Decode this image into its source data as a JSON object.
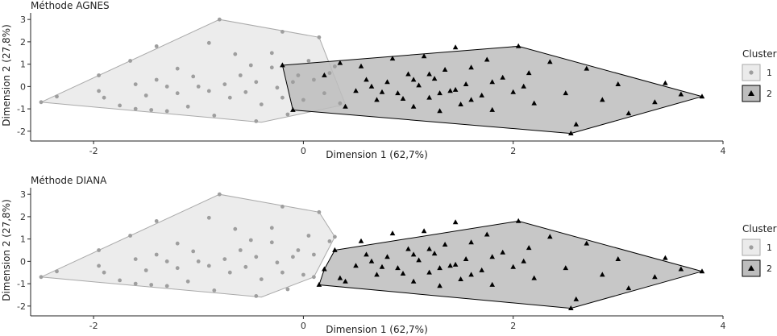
{
  "colors": {
    "cluster1_fill": "#ebebeb",
    "cluster1_stroke": "#aaaaaa",
    "cluster1_point": "#9e9e9e",
    "cluster2_fill": "#bdbdbd",
    "cluster2_stroke": "#000000",
    "cluster2_point": "#000000"
  },
  "legend": {
    "title": "Cluster",
    "placement": "right",
    "items": [
      {
        "label": "1",
        "marker": "circle"
      },
      {
        "label": "2",
        "marker": "triangle"
      }
    ]
  },
  "chart_data": [
    {
      "type": "scatter",
      "title": "Méthode AGNES",
      "xlabel": "Dimension 1 (62,7%)",
      "ylabel": "Dimension 2 (27,8%)",
      "xlim": [
        -2.6,
        4.0
      ],
      "ylim": [
        -2.15,
        3.15
      ],
      "xticks": [
        -2,
        0,
        2,
        4
      ],
      "yticks": [
        -2,
        -1,
        0,
        1,
        2,
        3
      ],
      "grid": false,
      "series": [
        {
          "name": "1",
          "marker": "circle",
          "hull": [
            [
              -2.5,
              -0.7
            ],
            [
              -0.8,
              3.0
            ],
            [
              0.15,
              2.2
            ],
            [
              0.4,
              -0.8
            ],
            [
              -0.4,
              -1.6
            ]
          ],
          "points": [
            [
              -2.5,
              -0.7
            ],
            [
              -2.35,
              -0.45
            ],
            [
              -1.95,
              0.5
            ],
            [
              -1.65,
              1.15
            ],
            [
              -1.4,
              1.8
            ],
            [
              -1.2,
              0.8
            ],
            [
              -1.05,
              0.45
            ],
            [
              -0.8,
              3.0
            ],
            [
              -0.9,
              1.95
            ],
            [
              -0.65,
              1.45
            ],
            [
              -0.5,
              0.95
            ],
            [
              -0.45,
              -1.55
            ],
            [
              -0.3,
              1.5
            ],
            [
              -0.2,
              2.45
            ],
            [
              -0.1,
              0.2
            ],
            [
              0.05,
              1.15
            ],
            [
              0.15,
              2.2
            ],
            [
              0.3,
              0.9
            ],
            [
              0.35,
              -0.75
            ],
            [
              -1.95,
              -0.2
            ],
            [
              -1.9,
              -0.5
            ],
            [
              -1.75,
              -0.85
            ],
            [
              -1.6,
              -1.0
            ],
            [
              -1.45,
              -1.05
            ],
            [
              -1.3,
              -1.1
            ],
            [
              -1.1,
              -0.9
            ],
            [
              -1.5,
              -0.4
            ],
            [
              -1.4,
              0.3
            ],
            [
              -1.3,
              0.0
            ],
            [
              -1.2,
              -0.3
            ],
            [
              -1.6,
              0.1
            ],
            [
              -1.0,
              0.0
            ],
            [
              -0.9,
              -0.2
            ],
            [
              -0.85,
              -1.3
            ],
            [
              -0.75,
              0.1
            ],
            [
              -0.7,
              -0.5
            ],
            [
              -0.6,
              0.5
            ],
            [
              -0.55,
              -0.25
            ],
            [
              -0.45,
              0.2
            ],
            [
              -0.4,
              -0.8
            ],
            [
              -0.3,
              0.85
            ],
            [
              -0.25,
              -0.05
            ],
            [
              -0.2,
              -0.5
            ],
            [
              -0.15,
              -1.25
            ],
            [
              -0.05,
              0.5
            ],
            [
              0.0,
              -0.6
            ],
            [
              0.1,
              0.3
            ],
            [
              0.2,
              -0.3
            ],
            [
              0.25,
              0.6
            ]
          ]
        },
        {
          "name": "2",
          "marker": "triangle",
          "hull": [
            [
              -0.2,
              0.95
            ],
            [
              2.05,
              1.8
            ],
            [
              3.8,
              -0.45
            ],
            [
              2.55,
              -2.1
            ],
            [
              -0.1,
              -1.05
            ]
          ],
          "points": [
            [
              -0.2,
              0.95
            ],
            [
              -0.1,
              -1.05
            ],
            [
              0.2,
              0.5
            ],
            [
              0.35,
              1.05
            ],
            [
              0.5,
              -0.2
            ],
            [
              0.6,
              0.3
            ],
            [
              0.7,
              -0.6
            ],
            [
              0.8,
              0.2
            ],
            [
              0.85,
              1.25
            ],
            [
              0.9,
              -0.3
            ],
            [
              1.0,
              0.55
            ],
            [
              1.05,
              -0.9
            ],
            [
              1.1,
              0.05
            ],
            [
              1.15,
              1.35
            ],
            [
              1.2,
              -0.5
            ],
            [
              1.25,
              0.35
            ],
            [
              1.3,
              -1.1
            ],
            [
              1.35,
              0.75
            ],
            [
              1.4,
              -0.2
            ],
            [
              1.45,
              1.75
            ],
            [
              1.5,
              -0.8
            ],
            [
              1.55,
              0.1
            ],
            [
              1.6,
              0.85
            ],
            [
              1.7,
              -0.4
            ],
            [
              1.75,
              1.2
            ],
            [
              1.8,
              -1.05
            ],
            [
              1.9,
              0.4
            ],
            [
              2.0,
              -0.25
            ],
            [
              2.05,
              1.8
            ],
            [
              2.15,
              0.6
            ],
            [
              2.2,
              -0.75
            ],
            [
              2.35,
              1.1
            ],
            [
              2.5,
              -0.3
            ],
            [
              2.55,
              -2.1
            ],
            [
              2.6,
              -1.7
            ],
            [
              2.7,
              0.8
            ],
            [
              2.85,
              -0.6
            ],
            [
              3.0,
              0.1
            ],
            [
              3.1,
              -1.2
            ],
            [
              3.35,
              -0.7
            ],
            [
              3.45,
              0.15
            ],
            [
              3.6,
              -0.35
            ],
            [
              3.8,
              -0.45
            ],
            [
              0.4,
              -0.9
            ],
            [
              0.55,
              0.9
            ],
            [
              0.65,
              0.0
            ],
            [
              0.75,
              -0.25
            ],
            [
              0.95,
              -0.55
            ],
            [
              1.05,
              0.3
            ],
            [
              1.2,
              0.55
            ],
            [
              1.3,
              -0.3
            ],
            [
              1.45,
              -0.15
            ],
            [
              1.6,
              -0.6
            ],
            [
              1.8,
              0.2
            ],
            [
              2.1,
              0.0
            ]
          ]
        }
      ]
    },
    {
      "type": "scatter",
      "title": "Méthode DIANA",
      "xlabel": "Dimension 1 (62,7%)",
      "ylabel": "Dimension 2 (27,8%)",
      "xlim": [
        -2.6,
        4.0
      ],
      "ylim": [
        -2.15,
        3.15
      ],
      "xticks": [
        -2,
        0,
        2,
        4
      ],
      "yticks": [
        -2,
        -1,
        0,
        1,
        2,
        3
      ],
      "grid": false,
      "series": [
        {
          "name": "1",
          "marker": "circle",
          "hull": [
            [
              -2.5,
              -0.7
            ],
            [
              -0.8,
              3.0
            ],
            [
              0.15,
              2.2
            ],
            [
              0.3,
              1.1
            ],
            [
              0.1,
              -0.7
            ],
            [
              -0.4,
              -1.6
            ]
          ],
          "points": [
            [
              -2.5,
              -0.7
            ],
            [
              -2.35,
              -0.45
            ],
            [
              -1.95,
              0.5
            ],
            [
              -1.65,
              1.15
            ],
            [
              -1.4,
              1.8
            ],
            [
              -1.2,
              0.8
            ],
            [
              -1.05,
              0.45
            ],
            [
              -0.8,
              3.0
            ],
            [
              -0.9,
              1.95
            ],
            [
              -0.65,
              1.45
            ],
            [
              -0.5,
              0.95
            ],
            [
              -0.45,
              -1.55
            ],
            [
              -0.3,
              1.5
            ],
            [
              -0.2,
              2.45
            ],
            [
              -0.1,
              0.2
            ],
            [
              0.05,
              1.15
            ],
            [
              0.15,
              2.2
            ],
            [
              0.3,
              1.1
            ],
            [
              0.25,
              0.9
            ],
            [
              0.1,
              -0.7
            ],
            [
              -1.95,
              -0.2
            ],
            [
              -1.9,
              -0.5
            ],
            [
              -1.75,
              -0.85
            ],
            [
              -1.6,
              -1.0
            ],
            [
              -1.45,
              -1.05
            ],
            [
              -1.3,
              -1.1
            ],
            [
              -1.1,
              -0.9
            ],
            [
              -1.5,
              -0.4
            ],
            [
              -1.4,
              0.3
            ],
            [
              -1.3,
              0.0
            ],
            [
              -1.2,
              -0.3
            ],
            [
              -1.6,
              0.1
            ],
            [
              -1.0,
              0.0
            ],
            [
              -0.9,
              -0.2
            ],
            [
              -0.85,
              -1.3
            ],
            [
              -0.75,
              0.1
            ],
            [
              -0.7,
              -0.5
            ],
            [
              -0.6,
              0.5
            ],
            [
              -0.55,
              -0.25
            ],
            [
              -0.45,
              0.2
            ],
            [
              -0.4,
              -0.8
            ],
            [
              -0.3,
              0.85
            ],
            [
              -0.25,
              -0.05
            ],
            [
              -0.2,
              -0.5
            ],
            [
              -0.15,
              -1.25
            ],
            [
              -0.05,
              0.5
            ],
            [
              0.0,
              -0.6
            ],
            [
              0.1,
              0.3
            ]
          ]
        },
        {
          "name": "2",
          "marker": "triangle",
          "hull": [
            [
              0.3,
              0.5
            ],
            [
              2.05,
              1.8
            ],
            [
              3.8,
              -0.45
            ],
            [
              2.55,
              -2.1
            ],
            [
              0.15,
              -1.05
            ],
            [
              0.2,
              -0.35
            ]
          ],
          "points": [
            [
              0.3,
              0.5
            ],
            [
              0.15,
              -1.05
            ],
            [
              0.2,
              -0.35
            ],
            [
              0.35,
              -0.75
            ],
            [
              0.5,
              -0.2
            ],
            [
              0.6,
              0.3
            ],
            [
              0.7,
              -0.6
            ],
            [
              0.8,
              0.2
            ],
            [
              0.85,
              1.25
            ],
            [
              0.9,
              -0.3
            ],
            [
              1.0,
              0.55
            ],
            [
              1.05,
              -0.9
            ],
            [
              1.1,
              0.05
            ],
            [
              1.15,
              1.35
            ],
            [
              1.2,
              -0.5
            ],
            [
              1.25,
              0.35
            ],
            [
              1.3,
              -1.1
            ],
            [
              1.35,
              0.75
            ],
            [
              1.4,
              -0.2
            ],
            [
              1.45,
              1.75
            ],
            [
              1.5,
              -0.8
            ],
            [
              1.55,
              0.1
            ],
            [
              1.6,
              0.85
            ],
            [
              1.7,
              -0.4
            ],
            [
              1.75,
              1.2
            ],
            [
              1.8,
              -1.05
            ],
            [
              1.9,
              0.4
            ],
            [
              2.0,
              -0.25
            ],
            [
              2.05,
              1.8
            ],
            [
              2.15,
              0.6
            ],
            [
              2.2,
              -0.75
            ],
            [
              2.35,
              1.1
            ],
            [
              2.5,
              -0.3
            ],
            [
              2.55,
              -2.1
            ],
            [
              2.6,
              -1.7
            ],
            [
              2.7,
              0.8
            ],
            [
              2.85,
              -0.6
            ],
            [
              3.0,
              0.1
            ],
            [
              3.1,
              -1.2
            ],
            [
              3.35,
              -0.7
            ],
            [
              3.45,
              0.15
            ],
            [
              3.6,
              -0.35
            ],
            [
              3.8,
              -0.45
            ],
            [
              0.4,
              -0.9
            ],
            [
              0.55,
              0.9
            ],
            [
              0.65,
              0.0
            ],
            [
              0.75,
              -0.25
            ],
            [
              0.95,
              -0.55
            ],
            [
              1.05,
              0.3
            ],
            [
              1.2,
              0.55
            ],
            [
              1.3,
              -0.3
            ],
            [
              1.45,
              -0.15
            ],
            [
              1.6,
              -0.6
            ],
            [
              1.8,
              0.2
            ],
            [
              2.1,
              0.0
            ]
          ]
        }
      ]
    }
  ]
}
